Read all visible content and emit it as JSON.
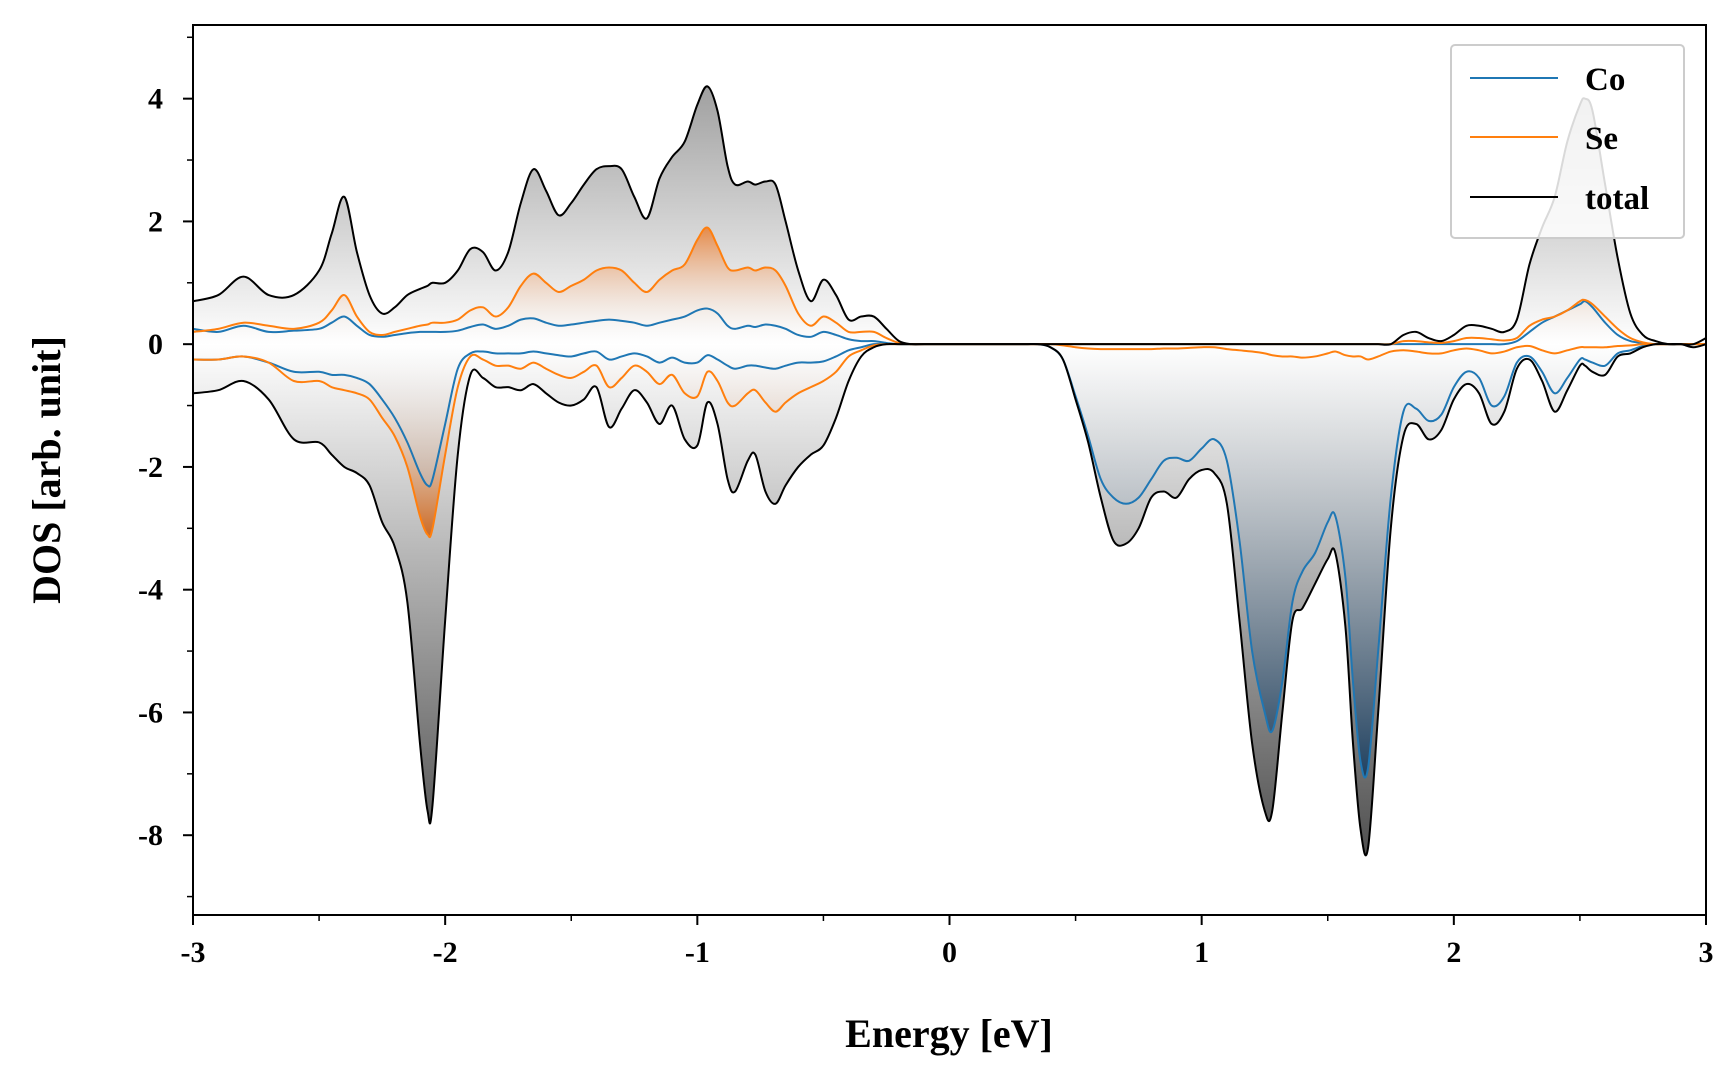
{
  "chart_data": {
    "type": "line",
    "title": "",
    "xlabel": "Energy [eV]",
    "ylabel": "DOS [arb. unit]",
    "xlim": [
      -3,
      3
    ],
    "ylim": [
      -9.3,
      5.2
    ],
    "x_ticks": [
      -3,
      -2,
      -1,
      0,
      1,
      2,
      3
    ],
    "x_tick_labels": [
      "-3",
      "-2",
      "-1",
      "0",
      "1",
      "2",
      "3"
    ],
    "y_ticks": [
      4,
      2,
      0,
      -2,
      -4,
      -6,
      -8
    ],
    "y_tick_labels": [
      "4",
      "2",
      "0",
      "-2",
      "-4",
      "-6",
      "-8"
    ],
    "grid": false,
    "legend": {
      "position": "top-right",
      "entries": [
        "Co",
        "Se",
        "total"
      ]
    },
    "colors": {
      "Co": "#1f77b4",
      "Se": "#ff7f0e",
      "total": "#000000"
    },
    "x": [
      -3.0,
      -2.9,
      -2.8,
      -2.7,
      -2.6,
      -2.5,
      -2.45,
      -2.4,
      -2.35,
      -2.3,
      -2.25,
      -2.2,
      -2.15,
      -2.1,
      -2.07,
      -2.05,
      -2.0,
      -1.95,
      -1.9,
      -1.85,
      -1.8,
      -1.75,
      -1.7,
      -1.65,
      -1.6,
      -1.55,
      -1.5,
      -1.45,
      -1.4,
      -1.35,
      -1.3,
      -1.25,
      -1.2,
      -1.15,
      -1.1,
      -1.05,
      -1.0,
      -0.96,
      -0.92,
      -0.88,
      -0.85,
      -0.8,
      -0.77,
      -0.73,
      -0.69,
      -0.65,
      -0.6,
      -0.55,
      -0.5,
      -0.45,
      -0.4,
      -0.35,
      -0.3,
      -0.25,
      -0.2,
      -0.15,
      -0.1,
      0.0,
      0.1,
      0.2,
      0.3,
      0.35,
      0.4,
      0.45,
      0.5,
      0.55,
      0.6,
      0.65,
      0.7,
      0.75,
      0.8,
      0.85,
      0.9,
      0.95,
      1.0,
      1.05,
      1.1,
      1.15,
      1.2,
      1.25,
      1.28,
      1.32,
      1.36,
      1.4,
      1.45,
      1.5,
      1.53,
      1.57,
      1.6,
      1.63,
      1.66,
      1.7,
      1.75,
      1.8,
      1.85,
      1.9,
      1.95,
      2.0,
      2.05,
      2.1,
      2.15,
      2.2,
      2.25,
      2.3,
      2.35,
      2.4,
      2.45,
      2.5,
      2.52,
      2.55,
      2.6,
      2.65,
      2.7,
      2.75,
      2.8,
      2.85,
      2.9,
      2.95,
      3.0
    ],
    "series": [
      {
        "name": "total",
        "spin_up": [
          0.7,
          0.8,
          1.1,
          0.8,
          0.8,
          1.2,
          1.8,
          2.4,
          1.5,
          0.8,
          0.5,
          0.6,
          0.8,
          0.9,
          0.95,
          1.0,
          1.0,
          1.2,
          1.55,
          1.5,
          1.2,
          1.5,
          2.3,
          2.85,
          2.5,
          2.1,
          2.3,
          2.6,
          2.85,
          2.9,
          2.85,
          2.4,
          2.05,
          2.7,
          3.05,
          3.3,
          3.9,
          4.2,
          3.8,
          2.9,
          2.6,
          2.65,
          2.6,
          2.65,
          2.6,
          2.0,
          1.2,
          0.7,
          1.05,
          0.8,
          0.4,
          0.45,
          0.45,
          0.25,
          0.05,
          0.0,
          0.0,
          0.0,
          0.0,
          0.0,
          0.0,
          0.0,
          0.0,
          0.0,
          0.0,
          0.0,
          0.0,
          0.0,
          0.0,
          0.0,
          0.0,
          0.0,
          0.0,
          0.0,
          0.0,
          0.0,
          0.0,
          0.0,
          0.0,
          0.0,
          0.0,
          0.0,
          0.0,
          0.0,
          0.0,
          0.0,
          0.0,
          0.0,
          0.0,
          0.0,
          0.0,
          0.0,
          0.0,
          0.15,
          0.2,
          0.1,
          0.05,
          0.15,
          0.3,
          0.3,
          0.25,
          0.2,
          0.4,
          1.3,
          1.9,
          2.4,
          3.3,
          3.9,
          4.0,
          3.8,
          2.6,
          1.4,
          0.5,
          0.15,
          0.05,
          0.0,
          0.0,
          0.0,
          0.1
        ],
        "spin_down": [
          -0.8,
          -0.75,
          -0.6,
          -0.9,
          -1.55,
          -1.6,
          -1.8,
          -2.0,
          -2.1,
          -2.3,
          -2.9,
          -3.3,
          -4.2,
          -6.5,
          -7.6,
          -7.5,
          -4.5,
          -1.8,
          -0.5,
          -0.55,
          -0.7,
          -0.7,
          -0.75,
          -0.65,
          -0.8,
          -0.95,
          -1.0,
          -0.9,
          -0.7,
          -1.35,
          -1.05,
          -0.75,
          -0.95,
          -1.3,
          -1.0,
          -1.55,
          -1.65,
          -0.95,
          -1.3,
          -2.2,
          -2.4,
          -1.9,
          -1.8,
          -2.4,
          -2.6,
          -2.3,
          -2.0,
          -1.8,
          -1.65,
          -1.2,
          -0.6,
          -0.2,
          -0.05,
          0.0,
          0.0,
          0.0,
          0.0,
          0.0,
          0.0,
          0.0,
          0.0,
          0.0,
          -0.05,
          -0.25,
          -0.9,
          -1.6,
          -2.5,
          -3.2,
          -3.25,
          -3.0,
          -2.5,
          -2.4,
          -2.5,
          -2.2,
          -2.05,
          -2.1,
          -2.6,
          -4.5,
          -6.5,
          -7.6,
          -7.6,
          -6.0,
          -4.5,
          -4.3,
          -3.9,
          -3.5,
          -3.4,
          -4.6,
          -6.5,
          -7.9,
          -8.2,
          -6.0,
          -3.0,
          -1.5,
          -1.3,
          -1.55,
          -1.4,
          -0.9,
          -0.65,
          -0.8,
          -1.3,
          -1.1,
          -0.4,
          -0.25,
          -0.6,
          -1.1,
          -0.75,
          -0.35,
          -0.35,
          -0.45,
          -0.5,
          -0.2,
          -0.15,
          -0.05,
          0.0,
          0.0,
          0.0,
          -0.05,
          0.0
        ]
      },
      {
        "name": "Co",
        "spin_up": [
          0.25,
          0.2,
          0.3,
          0.2,
          0.22,
          0.25,
          0.35,
          0.45,
          0.3,
          0.15,
          0.12,
          0.15,
          0.18,
          0.2,
          0.2,
          0.2,
          0.2,
          0.22,
          0.28,
          0.32,
          0.25,
          0.3,
          0.4,
          0.42,
          0.35,
          0.3,
          0.32,
          0.35,
          0.38,
          0.4,
          0.38,
          0.35,
          0.3,
          0.35,
          0.4,
          0.45,
          0.55,
          0.58,
          0.5,
          0.3,
          0.25,
          0.3,
          0.28,
          0.32,
          0.3,
          0.25,
          0.15,
          0.12,
          0.2,
          0.15,
          0.08,
          0.05,
          0.05,
          0.02,
          0.0,
          0.0,
          0.0,
          0.0,
          0.0,
          0.0,
          0.0,
          0.0,
          0.0,
          0.0,
          0.0,
          0.0,
          0.0,
          0.0,
          0.0,
          0.0,
          0.0,
          0.0,
          0.0,
          0.0,
          0.0,
          0.0,
          0.0,
          0.0,
          0.0,
          0.0,
          0.0,
          0.0,
          0.0,
          0.0,
          0.0,
          0.0,
          0.0,
          0.0,
          0.0,
          0.0,
          0.0,
          0.0,
          0.0,
          0.0,
          0.0,
          0.0,
          0.0,
          0.0,
          0.0,
          0.0,
          0.0,
          0.0,
          0.05,
          0.2,
          0.35,
          0.45,
          0.55,
          0.65,
          0.7,
          0.6,
          0.35,
          0.15,
          0.05,
          0.02,
          0.0,
          0.0,
          0.0,
          0.0,
          0.0
        ],
        "spin_down": [
          -0.25,
          -0.25,
          -0.2,
          -0.3,
          -0.45,
          -0.45,
          -0.5,
          -0.5,
          -0.55,
          -0.65,
          -0.9,
          -1.2,
          -1.6,
          -2.1,
          -2.3,
          -2.2,
          -1.3,
          -0.4,
          -0.15,
          -0.12,
          -0.15,
          -0.15,
          -0.15,
          -0.12,
          -0.15,
          -0.18,
          -0.2,
          -0.15,
          -0.12,
          -0.25,
          -0.2,
          -0.15,
          -0.2,
          -0.3,
          -0.22,
          -0.3,
          -0.3,
          -0.18,
          -0.25,
          -0.35,
          -0.4,
          -0.35,
          -0.35,
          -0.38,
          -0.4,
          -0.35,
          -0.3,
          -0.3,
          -0.28,
          -0.2,
          -0.1,
          -0.05,
          0.0,
          0.0,
          0.0,
          0.0,
          0.0,
          0.0,
          0.0,
          0.0,
          0.0,
          0.0,
          -0.05,
          -0.25,
          -0.85,
          -1.5,
          -2.2,
          -2.5,
          -2.6,
          -2.5,
          -2.2,
          -1.9,
          -1.85,
          -1.9,
          -1.7,
          -1.55,
          -1.9,
          -3.2,
          -5.0,
          -6.0,
          -6.3,
          -5.5,
          -4.2,
          -3.7,
          -3.4,
          -2.9,
          -2.8,
          -3.8,
          -5.5,
          -6.8,
          -6.9,
          -5.0,
          -2.5,
          -1.1,
          -1.05,
          -1.25,
          -1.15,
          -0.7,
          -0.45,
          -0.55,
          -1.0,
          -0.85,
          -0.3,
          -0.2,
          -0.45,
          -0.8,
          -0.55,
          -0.25,
          -0.25,
          -0.3,
          -0.35,
          -0.15,
          -0.1,
          -0.03,
          0.0,
          0.0,
          0.0,
          0.0,
          0.0
        ]
      },
      {
        "name": "Se",
        "spin_up": [
          0.2,
          0.25,
          0.35,
          0.3,
          0.25,
          0.35,
          0.55,
          0.8,
          0.45,
          0.2,
          0.15,
          0.2,
          0.25,
          0.3,
          0.32,
          0.35,
          0.35,
          0.4,
          0.55,
          0.6,
          0.45,
          0.6,
          0.95,
          1.15,
          1.0,
          0.85,
          0.95,
          1.05,
          1.2,
          1.25,
          1.2,
          1.0,
          0.85,
          1.05,
          1.2,
          1.3,
          1.7,
          1.9,
          1.6,
          1.25,
          1.2,
          1.25,
          1.2,
          1.25,
          1.2,
          0.95,
          0.5,
          0.3,
          0.45,
          0.35,
          0.2,
          0.2,
          0.2,
          0.1,
          0.02,
          0.0,
          0.0,
          0.0,
          0.0,
          0.0,
          0.0,
          0.0,
          0.0,
          0.0,
          0.0,
          0.0,
          0.0,
          0.0,
          0.0,
          0.0,
          0.0,
          0.0,
          0.0,
          0.0,
          0.0,
          0.0,
          0.0,
          0.0,
          0.0,
          0.0,
          0.0,
          0.0,
          0.0,
          0.0,
          0.0,
          0.0,
          0.0,
          0.0,
          0.0,
          0.0,
          0.0,
          0.0,
          0.0,
          0.05,
          0.05,
          0.03,
          0.02,
          0.05,
          0.1,
          0.1,
          0.08,
          0.06,
          0.1,
          0.3,
          0.4,
          0.45,
          0.55,
          0.7,
          0.72,
          0.65,
          0.45,
          0.25,
          0.1,
          0.03,
          0.0,
          0.0,
          0.0,
          0.0,
          0.0
        ],
        "spin_down": [
          -0.25,
          -0.25,
          -0.2,
          -0.3,
          -0.6,
          -0.6,
          -0.7,
          -0.75,
          -0.8,
          -0.9,
          -1.2,
          -1.5,
          -2.0,
          -2.8,
          -3.1,
          -3.0,
          -1.8,
          -0.7,
          -0.2,
          -0.25,
          -0.35,
          -0.35,
          -0.4,
          -0.3,
          -0.4,
          -0.5,
          -0.55,
          -0.45,
          -0.35,
          -0.7,
          -0.55,
          -0.35,
          -0.45,
          -0.65,
          -0.5,
          -0.8,
          -0.85,
          -0.45,
          -0.6,
          -0.95,
          -1.0,
          -0.8,
          -0.75,
          -0.95,
          -1.1,
          -0.95,
          -0.8,
          -0.7,
          -0.6,
          -0.45,
          -0.2,
          -0.1,
          -0.02,
          0.0,
          0.0,
          0.0,
          0.0,
          0.0,
          0.0,
          0.0,
          0.0,
          0.0,
          0.0,
          -0.02,
          -0.05,
          -0.07,
          -0.08,
          -0.08,
          -0.08,
          -0.08,
          -0.08,
          -0.07,
          -0.07,
          -0.06,
          -0.05,
          -0.05,
          -0.08,
          -0.1,
          -0.12,
          -0.15,
          -0.18,
          -0.2,
          -0.2,
          -0.22,
          -0.2,
          -0.15,
          -0.12,
          -0.18,
          -0.2,
          -0.2,
          -0.25,
          -0.2,
          -0.12,
          -0.1,
          -0.12,
          -0.15,
          -0.15,
          -0.1,
          -0.07,
          -0.1,
          -0.15,
          -0.12,
          -0.05,
          -0.03,
          -0.1,
          -0.15,
          -0.1,
          -0.05,
          -0.05,
          -0.05,
          -0.05,
          -0.03,
          -0.02,
          0.0,
          0.0,
          0.0,
          0.0,
          0.0,
          0.0
        ]
      }
    ]
  }
}
